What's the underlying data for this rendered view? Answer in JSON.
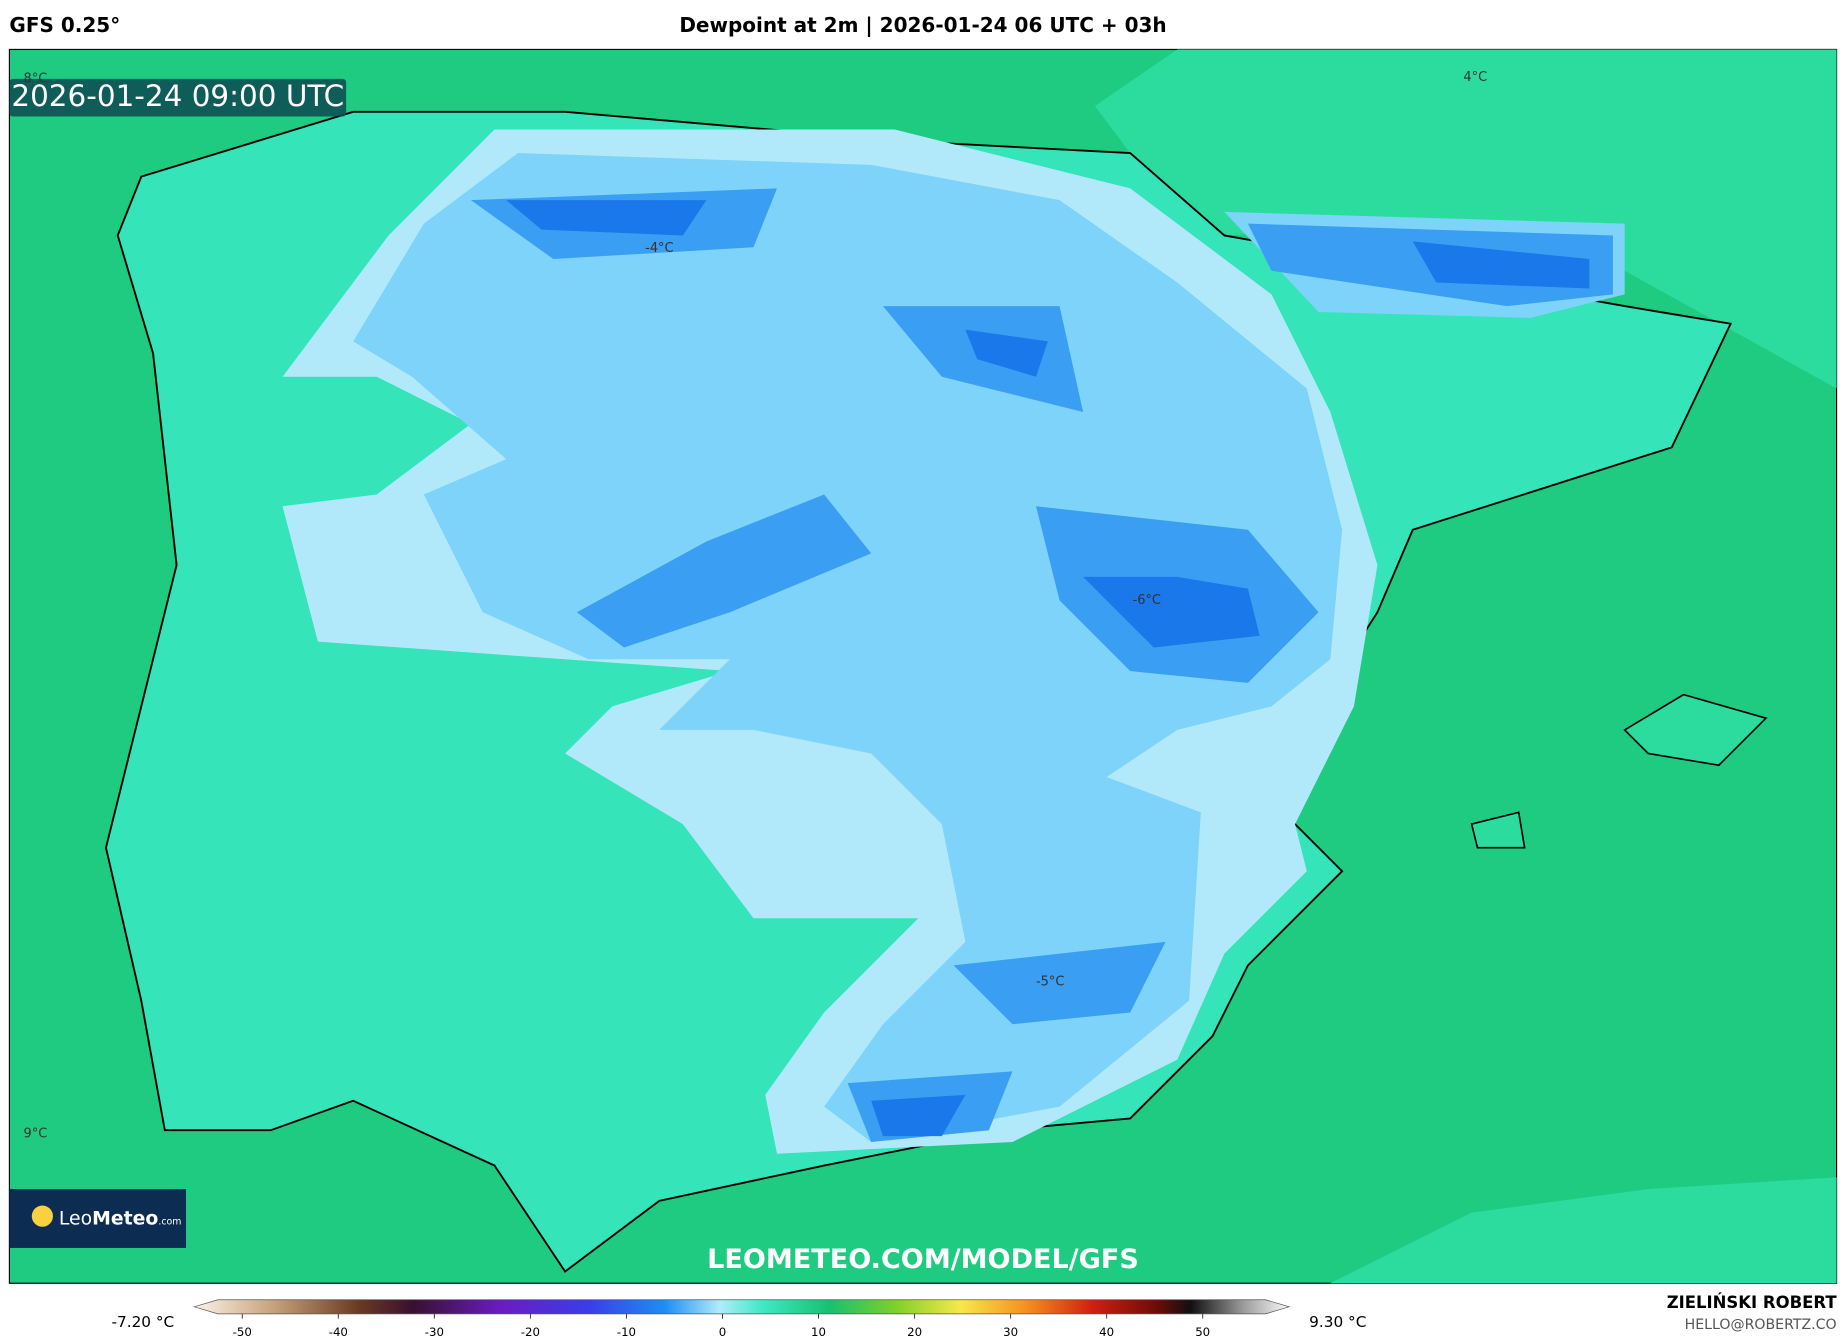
{
  "header": {
    "model": "GFS 0.25°",
    "title": "Dewpoint at 2m | 2026-01-24 06 UTC + 03h",
    "valid_time": "2026-01-24 09:00 UTC"
  },
  "map": {
    "labels": [
      "8°C",
      "4°C",
      "-4°C",
      "-6°C",
      "-5°C",
      "9°C"
    ],
    "watermark": "LEOMETEO.COM/MODEL/GFS",
    "logo": {
      "leo": "Leo",
      "meteo": "Meteo",
      "domain": ".com"
    }
  },
  "colorbar": {
    "min_label": "-7.20 °C",
    "max_label": "9.30 °C",
    "range": [
      -55,
      59
    ],
    "ticks": [
      -50,
      -40,
      -30,
      -20,
      -10,
      0,
      10,
      20,
      30,
      40,
      50
    ]
  },
  "footer": {
    "author": "ZIELIŃSKI ROBERT",
    "email": "HELLO@ROBERTZ.CO"
  }
}
